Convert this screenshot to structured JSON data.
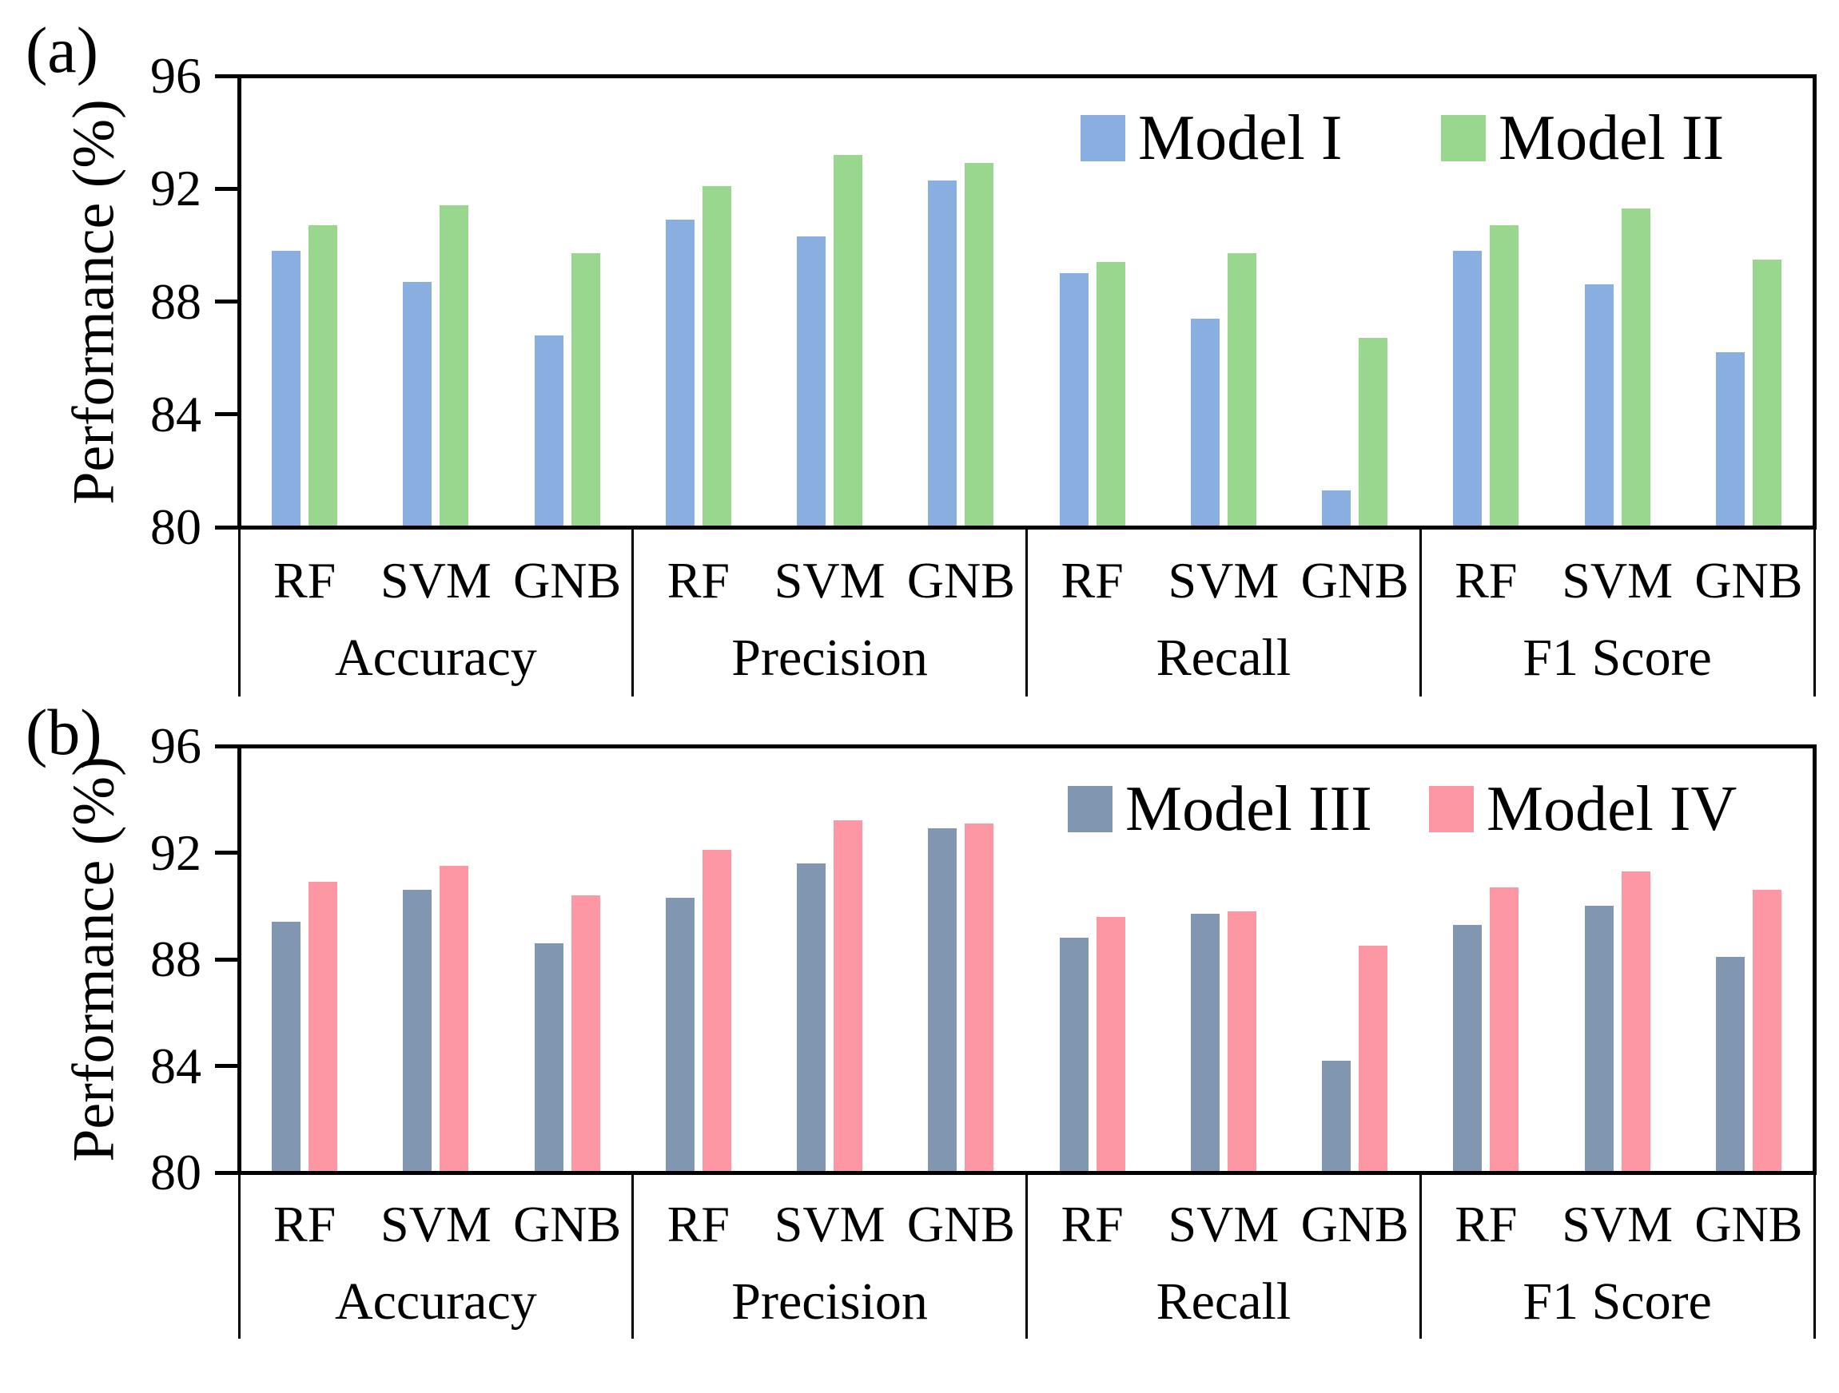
{
  "chart_data": [
    {
      "type": "bar",
      "panel_tag": "(a)",
      "ylabel": "Performance (%)",
      "ylim": [
        80,
        96
      ],
      "yticks": [
        96,
        92,
        88,
        84,
        80
      ],
      "grid": false,
      "legend_position": "inside-top-right",
      "categories": [
        "Accuracy",
        "Precision",
        "Recall",
        "F1 Score"
      ],
      "subcategories": [
        "RF",
        "SVM",
        "GNB"
      ],
      "series": [
        {
          "name": "Model I",
          "color": "#89AFE1",
          "values": [
            [
              89.8,
              88.7,
              86.8
            ],
            [
              90.9,
              90.3,
              92.3
            ],
            [
              89.0,
              87.4,
              81.3
            ],
            [
              89.8,
              88.6,
              86.2
            ]
          ]
        },
        {
          "name": "Model II",
          "color": "#9AD78E",
          "values": [
            [
              90.7,
              91.4,
              89.7
            ],
            [
              92.1,
              93.2,
              92.9
            ],
            [
              89.4,
              89.7,
              86.7
            ],
            [
              90.7,
              91.3,
              89.5
            ]
          ]
        }
      ]
    },
    {
      "type": "bar",
      "panel_tag": "(b)",
      "ylabel": "Performance (%)",
      "ylim": [
        80,
        96
      ],
      "yticks": [
        96,
        92,
        88,
        84,
        80
      ],
      "grid": false,
      "legend_position": "inside-top-right",
      "categories": [
        "Accuracy",
        "Precision",
        "Recall",
        "F1 Score"
      ],
      "subcategories": [
        "RF",
        "SVM",
        "GNB"
      ],
      "series": [
        {
          "name": "Model III",
          "color": "#8197B1",
          "values": [
            [
              89.4,
              90.6,
              88.6
            ],
            [
              90.3,
              91.6,
              92.9
            ],
            [
              88.8,
              89.7,
              84.2
            ],
            [
              89.3,
              90.0,
              88.1
            ]
          ]
        },
        {
          "name": "Model IV",
          "color": "#FC97A3",
          "values": [
            [
              90.9,
              91.5,
              90.4
            ],
            [
              92.1,
              93.2,
              93.1
            ],
            [
              89.6,
              89.8,
              88.5
            ],
            [
              90.7,
              91.3,
              90.6
            ]
          ]
        }
      ]
    }
  ]
}
